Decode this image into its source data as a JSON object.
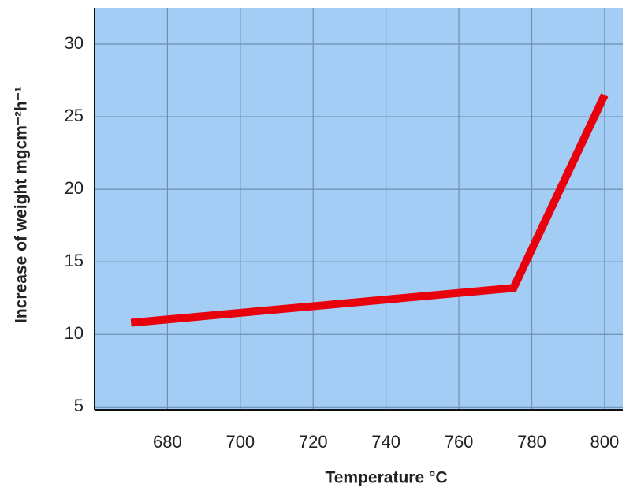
{
  "chart_data": {
    "type": "line",
    "x_label": "Temperature °C",
    "y_label": "Increase of weight mgcm⁻²h⁻¹",
    "series": [
      {
        "color": "#e8000c",
        "x": [
          670,
          775,
          800
        ],
        "values": [
          10.8,
          13.2,
          26.5
        ]
      }
    ],
    "xlim": [
      660,
      805
    ],
    "xticks": [
      680,
      700,
      720,
      740,
      760,
      780,
      800
    ],
    "ylim": [
      4.8,
      32.5
    ],
    "yticks": [
      5,
      10,
      15,
      20,
      25,
      30
    ],
    "grid": true,
    "background": "#a3cdf5"
  }
}
